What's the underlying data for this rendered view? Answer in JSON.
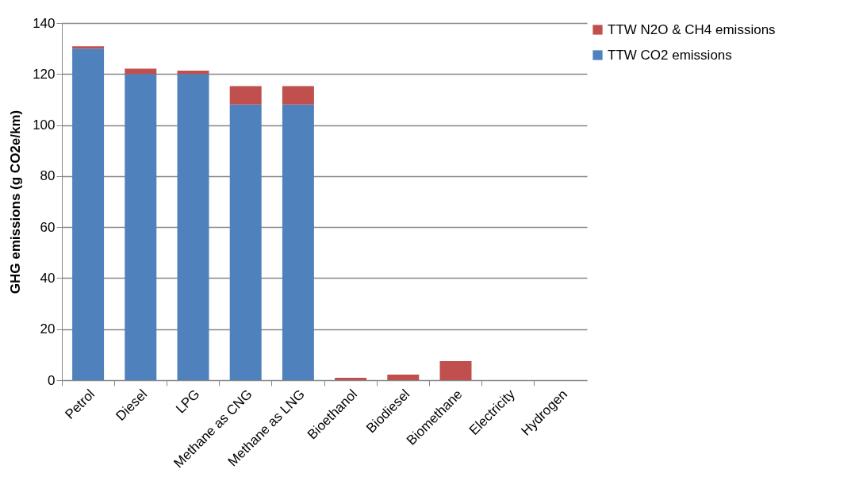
{
  "chart_data": {
    "type": "bar",
    "stacked": true,
    "ylabel": "GHG emissions (g CO2e/km)",
    "categories": [
      "Petrol",
      "Diesel",
      "LPG",
      "Methane as CNG",
      "Methane as LNG",
      "Bioethanol",
      "Biodiesel",
      "Biomethane",
      "Electricity",
      "Hydrogen"
    ],
    "series": [
      {
        "name": "TTW CO2 emissions",
        "color": "#4f81bd",
        "values": [
          130,
          120,
          120,
          108,
          108,
          0,
          0,
          0,
          0,
          0
        ]
      },
      {
        "name": "TTW N2O & CH4 emissions",
        "color": "#c0504d",
        "values": [
          0.9,
          2.1,
          1.3,
          7.3,
          7.3,
          0.9,
          2.2,
          7.5,
          0,
          0
        ]
      }
    ],
    "ylim": [
      0,
      140
    ],
    "yticks": [
      0,
      20,
      40,
      60,
      80,
      100,
      120,
      140
    ],
    "grid": "y",
    "legend": "right"
  }
}
